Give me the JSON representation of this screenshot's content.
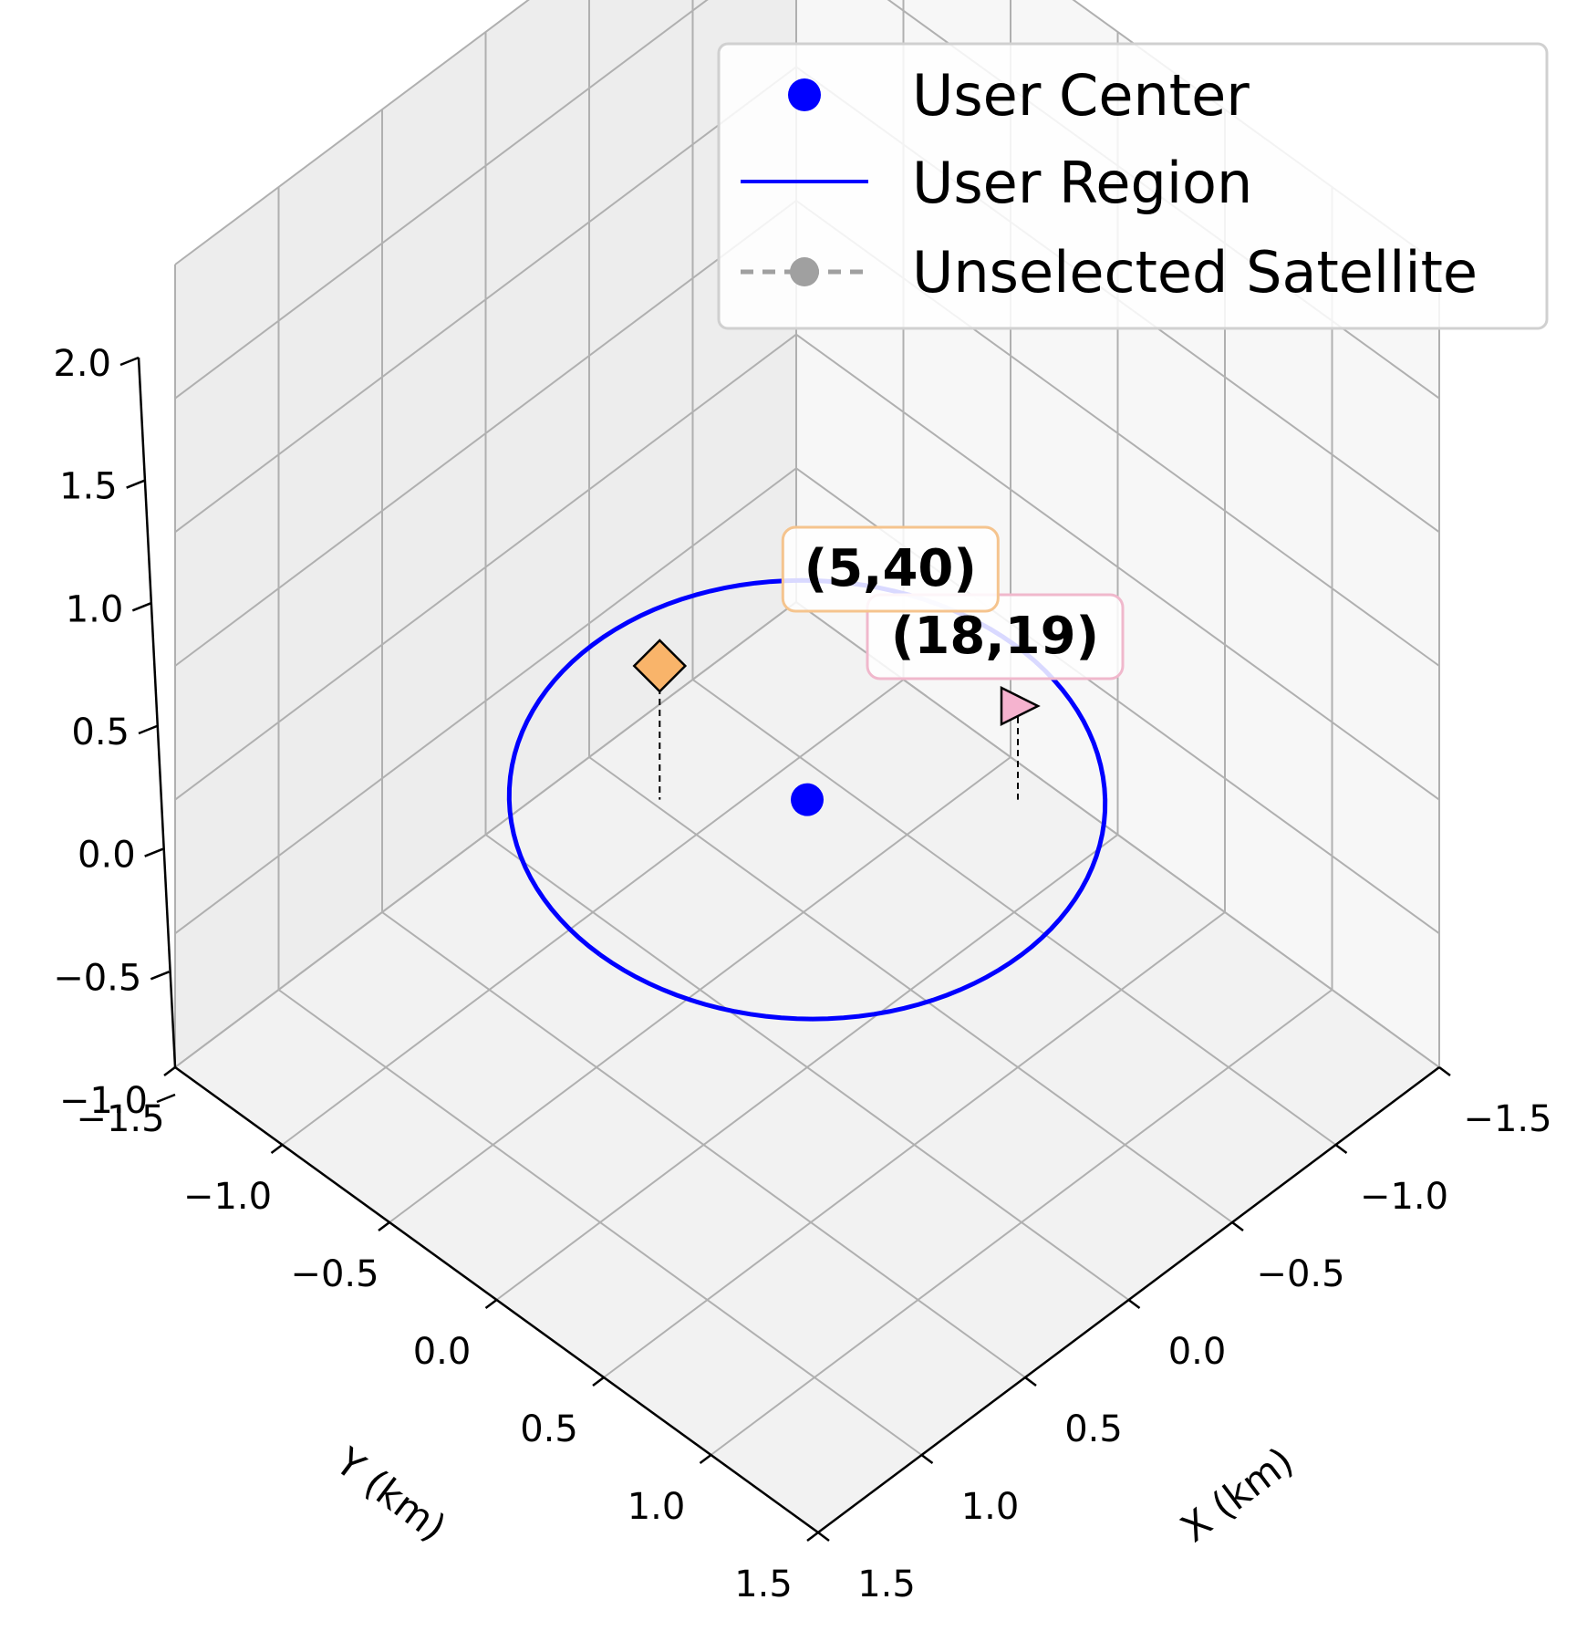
{
  "chart_data": {
    "type": "scatter",
    "projection": "3d",
    "xlabel": "X (km)",
    "ylabel": "Y (km)",
    "zlabel": "",
    "xlim": [
      -1.5,
      1.5
    ],
    "ylim": [
      -1.5,
      1.5
    ],
    "zlim": [
      -1.0,
      2.0
    ],
    "x_ticks": [
      "−1.5",
      "−1.0",
      "−0.5",
      "0.0",
      "0.5",
      "1.0",
      "1.5"
    ],
    "y_ticks": [
      "−1.5",
      "−1.0",
      "−0.5",
      "0.0",
      "0.5",
      "1.0",
      "1.5"
    ],
    "z_ticks": [
      "−1.0",
      "−0.5",
      "0.0",
      "0.5",
      "1.0",
      "1.5",
      "2.0"
    ],
    "grid": true,
    "legend": {
      "placement": "top-right",
      "entries": [
        {
          "label": "User Center",
          "style": "marker",
          "color": "#0000ff"
        },
        {
          "label": "User Region",
          "style": "line",
          "color": "#0000ff"
        },
        {
          "label": "Unselected Satellite",
          "style": "dashed-marker",
          "color": "#a0a0a0"
        }
      ]
    },
    "user_center": {
      "x": 0,
      "y": 0,
      "z": 0,
      "color": "#0000ff"
    },
    "user_region": {
      "radius": 1.0,
      "z": 0,
      "color": "#0000ff"
    },
    "satellites": [
      {
        "label": "(18,19)",
        "marker": "triangle-right",
        "x": -0.5,
        "y": 0.5,
        "z": 0.35,
        "color": "#f5b3cf",
        "box_edge": "#f0b8cc"
      },
      {
        "label": "(5,40)",
        "marker": "diamond",
        "x": 0.35,
        "y": -0.35,
        "z": 0.5,
        "color": "#f9b46a",
        "box_edge": "#f5c48e"
      }
    ]
  }
}
